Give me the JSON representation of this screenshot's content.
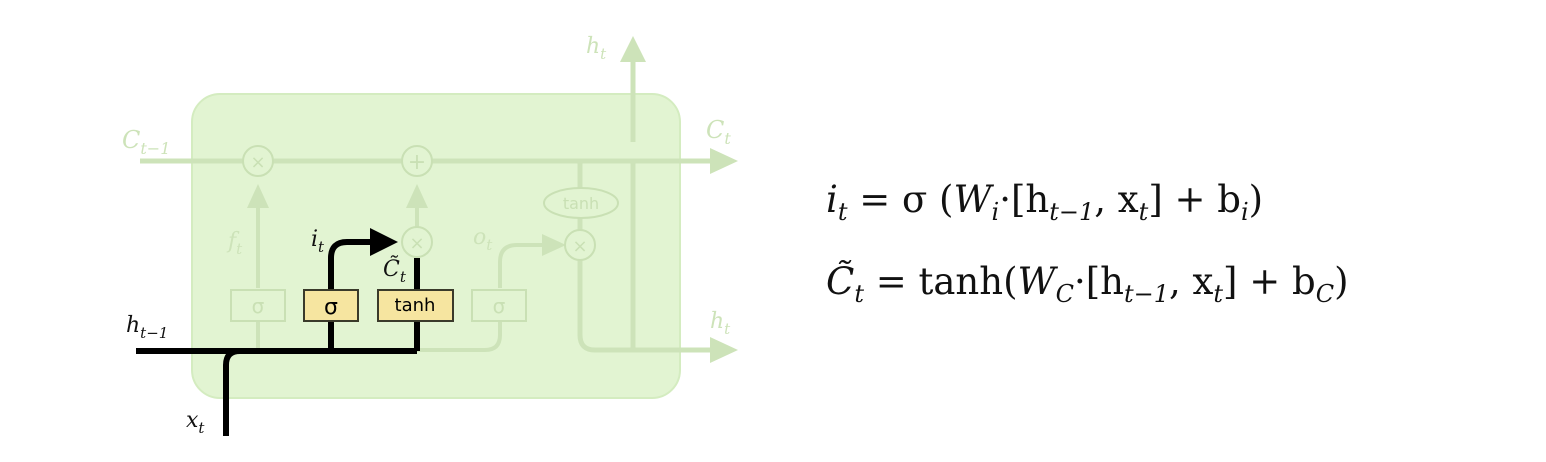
{
  "diagram": {
    "cell_labels": {
      "c_prev": "C",
      "c_prev_sub": "t−1",
      "c_next": "C",
      "c_next_sub": "t",
      "h_top": "h",
      "h_top_sub": "t",
      "h_right": "h",
      "h_right_sub": "t",
      "h_prev": "h",
      "h_prev_sub": "t−1",
      "x_in": "x",
      "x_in_sub": "t",
      "f_gate": "f",
      "f_gate_sub": "t",
      "i_gate": "i",
      "i_gate_sub": "t",
      "c_tilde": "C̃",
      "c_tilde_sub": "t",
      "o_gate": "o",
      "o_gate_sub": "t"
    },
    "ops": {
      "multiply": "×",
      "add": "+",
      "tanh_oval": "tanh"
    },
    "layers": {
      "sigma_faded_1": "σ",
      "sigma_active": "σ",
      "tanh_active": "tanh",
      "sigma_faded_2": "σ"
    },
    "colors": {
      "cell_fill": "#e2f4d2",
      "cell_stroke": "#d4ecc0",
      "faded": "#c9e0b4",
      "active_line": "#000000",
      "layer_fill": "#f6e5a0",
      "layer_stroke": "#3a3a2a"
    }
  },
  "equations": {
    "eq1": {
      "lhs": "i",
      "lhs_sub": "t",
      "op_eq": " = σ (",
      "W": "W",
      "W_sub": "i",
      "mid": "·[h",
      "h_sub": "t−1",
      "comma": ", x",
      "x_sub": "t",
      "close": "]  +  b",
      "b_sub": "i",
      "end": ")"
    },
    "eq2": {
      "lhs": "C̃",
      "lhs_sub": "t",
      "op_eq": " = ",
      "fn": "tanh",
      "paren": "(",
      "W": "W",
      "W_sub": "C",
      "mid": "·[h",
      "h_sub": "t−1",
      "comma": ", x",
      "x_sub": "t",
      "close": "]  +  b",
      "b_sub": "C",
      "end": ")"
    }
  }
}
